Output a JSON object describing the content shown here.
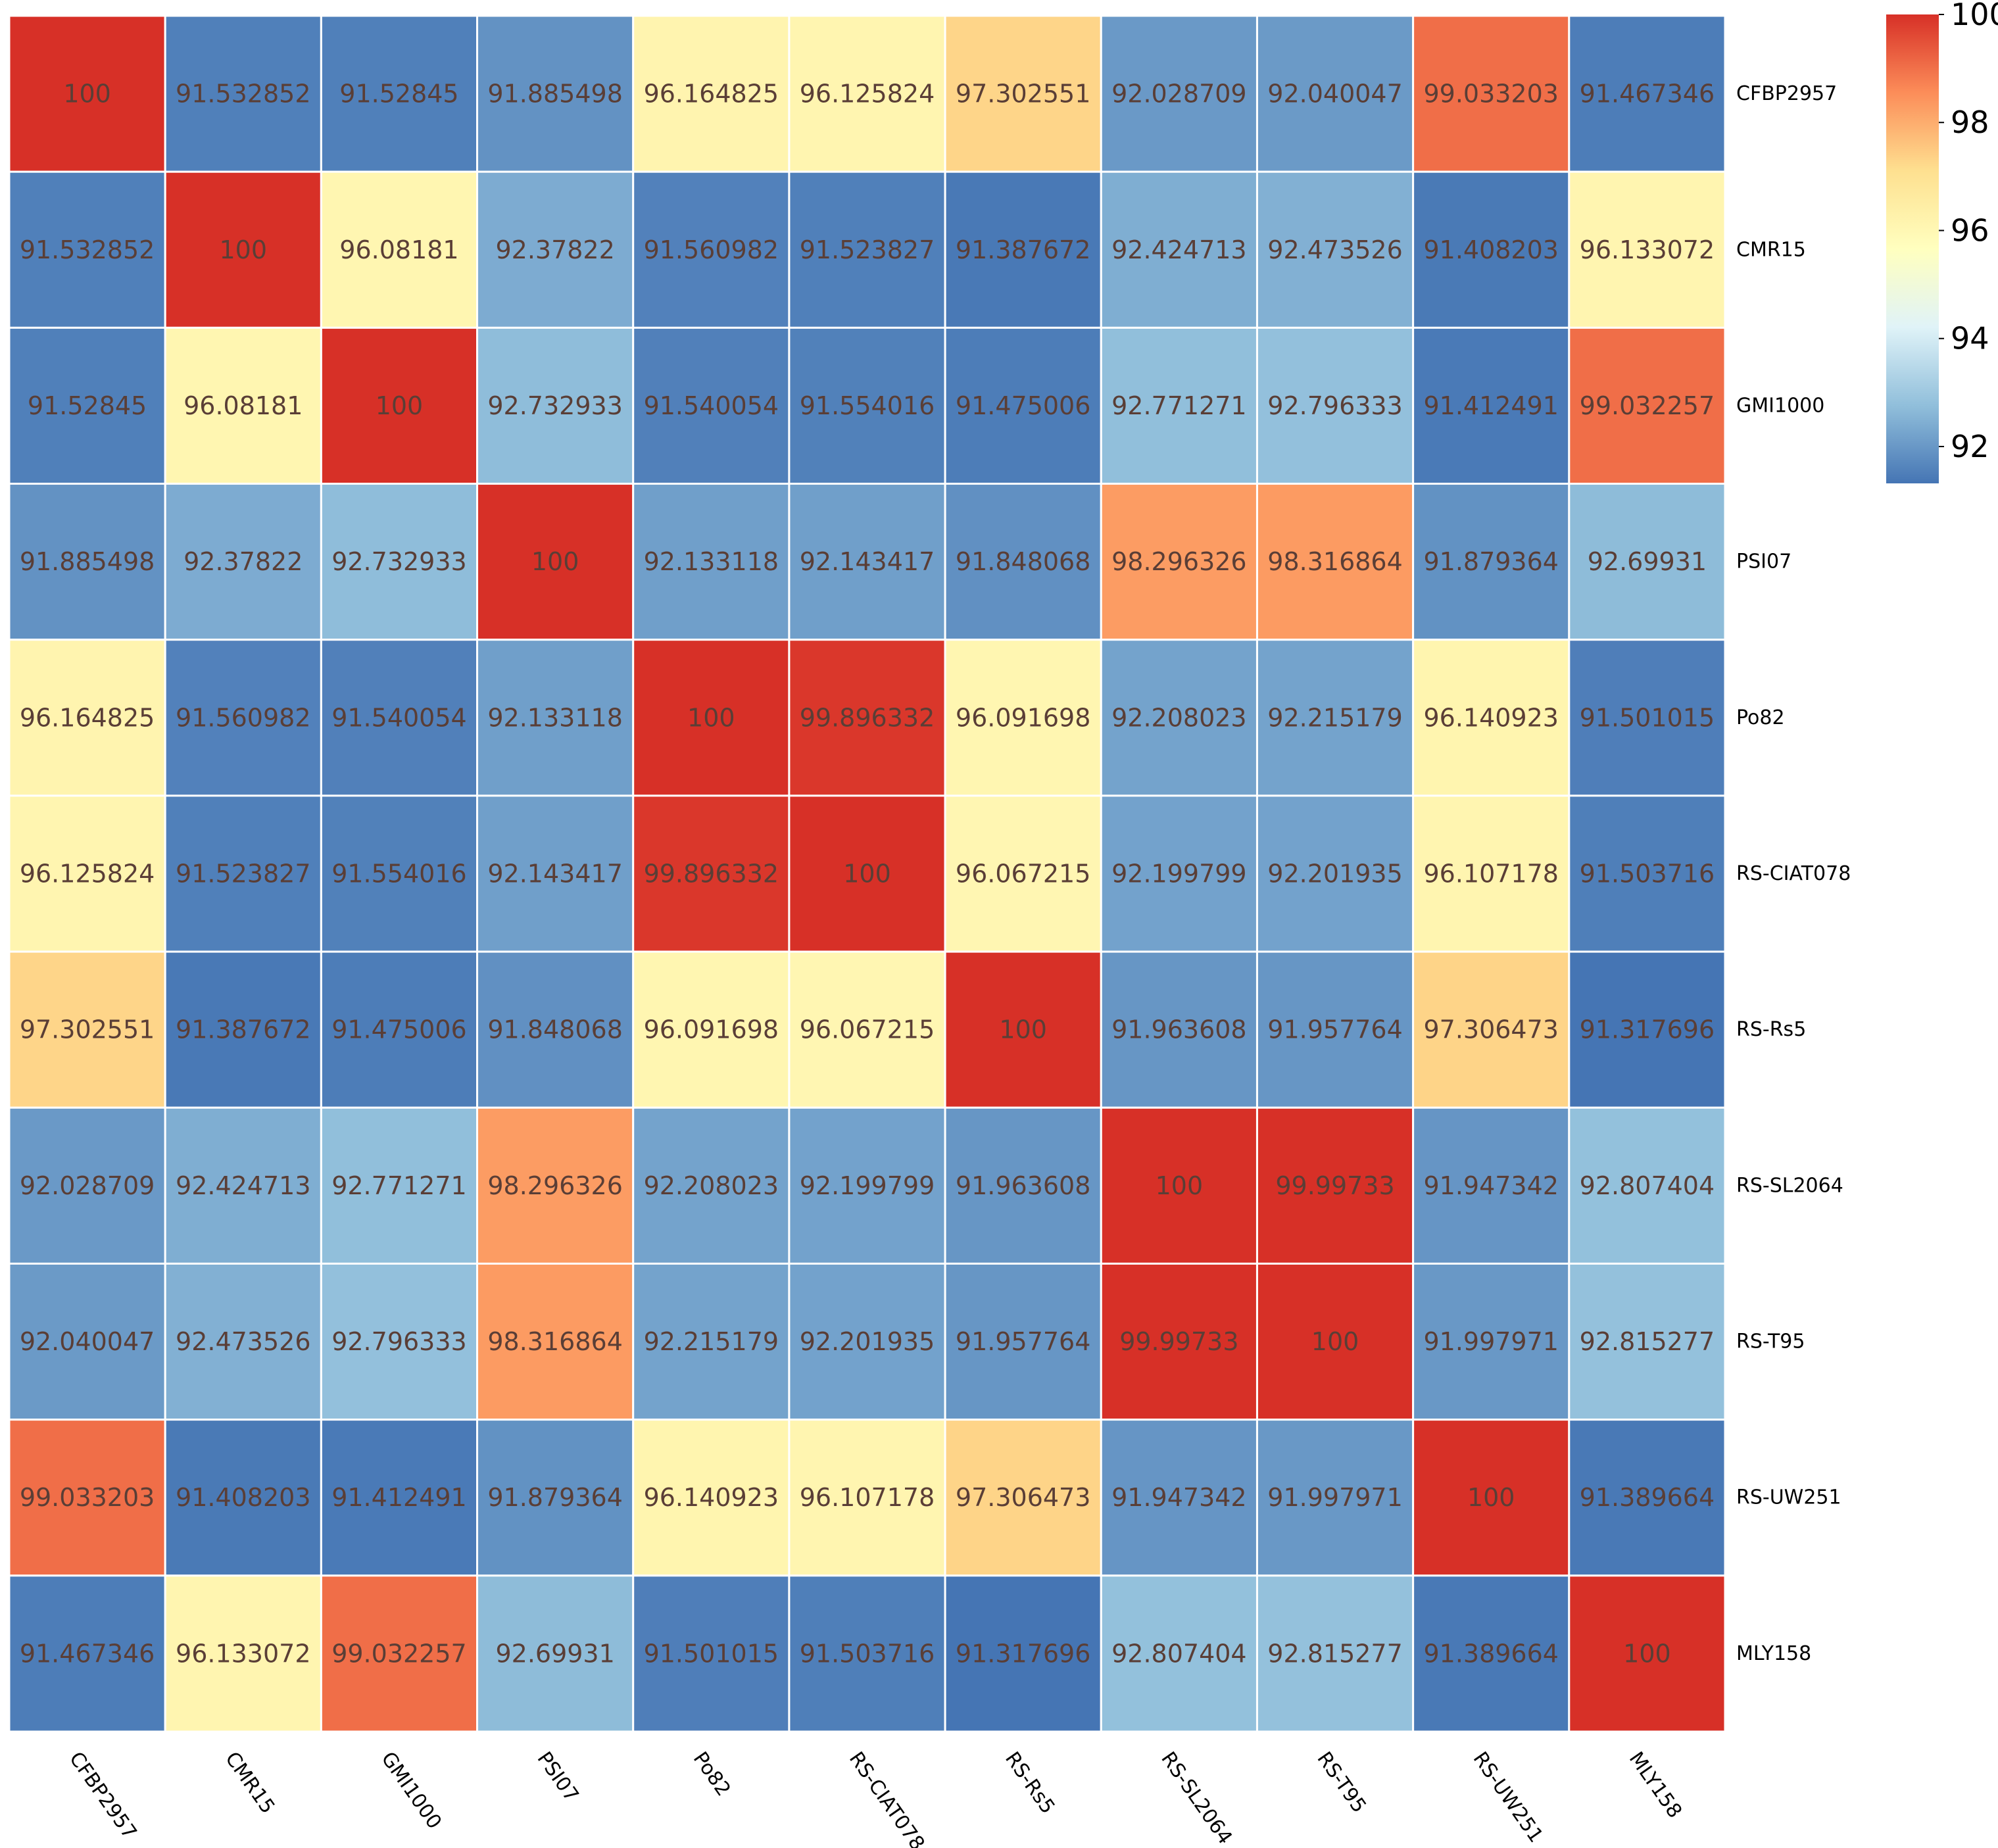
{
  "chart_data": {
    "type": "heatmap",
    "title": "",
    "xlabel": "",
    "ylabel": "",
    "colormap": "RdYlBu_r",
    "annotate": true,
    "row_label_position": "right",
    "col_label_position": "bottom",
    "col_label_rotation": "diagonal-down",
    "labels": [
      "CFBP2957",
      "CMR15",
      "GMI1000",
      "PSI07",
      "Po82",
      "RS-CIAT078",
      "RS-Rs5",
      "RS-SL2064",
      "RS-T95",
      "RS-UW251",
      "MLY158"
    ],
    "matrix": [
      [
        "100",
        "91.532852",
        "91.52845",
        "91.885498",
        "96.164825",
        "96.125824",
        "97.302551",
        "92.028709",
        "92.040047",
        "99.033203",
        "91.467346"
      ],
      [
        "91.532852",
        "100",
        "96.08181",
        "92.37822",
        "91.560982",
        "91.523827",
        "91.387672",
        "92.424713",
        "92.473526",
        "91.408203",
        "96.133072"
      ],
      [
        "91.52845",
        "96.08181",
        "100",
        "92.732933",
        "91.540054",
        "91.554016",
        "91.475006",
        "92.771271",
        "92.796333",
        "91.412491",
        "99.032257"
      ],
      [
        "91.885498",
        "92.37822",
        "92.732933",
        "100",
        "92.133118",
        "92.143417",
        "91.848068",
        "98.296326",
        "98.316864",
        "91.879364",
        "92.69931"
      ],
      [
        "96.164825",
        "91.560982",
        "91.540054",
        "92.133118",
        "100",
        "99.896332",
        "96.091698",
        "92.208023",
        "92.215179",
        "96.140923",
        "91.501015"
      ],
      [
        "96.125824",
        "91.523827",
        "91.554016",
        "92.143417",
        "99.896332",
        "100",
        "96.067215",
        "92.199799",
        "92.201935",
        "96.107178",
        "91.503716"
      ],
      [
        "97.302551",
        "91.387672",
        "91.475006",
        "91.848068",
        "96.091698",
        "96.067215",
        "100",
        "91.963608",
        "91.957764",
        "97.306473",
        "91.317696"
      ],
      [
        "92.028709",
        "92.424713",
        "92.771271",
        "98.296326",
        "92.208023",
        "92.199799",
        "91.963608",
        "100",
        "99.99733",
        "91.947342",
        "92.807404"
      ],
      [
        "92.040047",
        "92.473526",
        "92.796333",
        "98.316864",
        "92.215179",
        "92.201935",
        "91.957764",
        "99.99733",
        "100",
        "91.997971",
        "92.815277"
      ],
      [
        "99.033203",
        "91.408203",
        "91.412491",
        "91.879364",
        "96.140923",
        "96.107178",
        "97.306473",
        "91.947342",
        "91.997971",
        "100",
        "91.389664"
      ],
      [
        "91.467346",
        "96.133072",
        "99.032257",
        "92.69931",
        "91.501015",
        "91.503716",
        "91.317696",
        "92.807404",
        "92.815277",
        "91.389664",
        "100"
      ]
    ],
    "colorbar": {
      "range": [
        91.317696,
        100
      ],
      "ticks": [
        92,
        94,
        96,
        98,
        100
      ],
      "tick_labels": [
        "92",
        "94",
        "96",
        "98",
        "100"
      ]
    },
    "color_stops": [
      "#4575b4",
      "#91bfdb",
      "#e0f3f8",
      "#ffffbf",
      "#fee090",
      "#fc8d59",
      "#d73027"
    ]
  }
}
